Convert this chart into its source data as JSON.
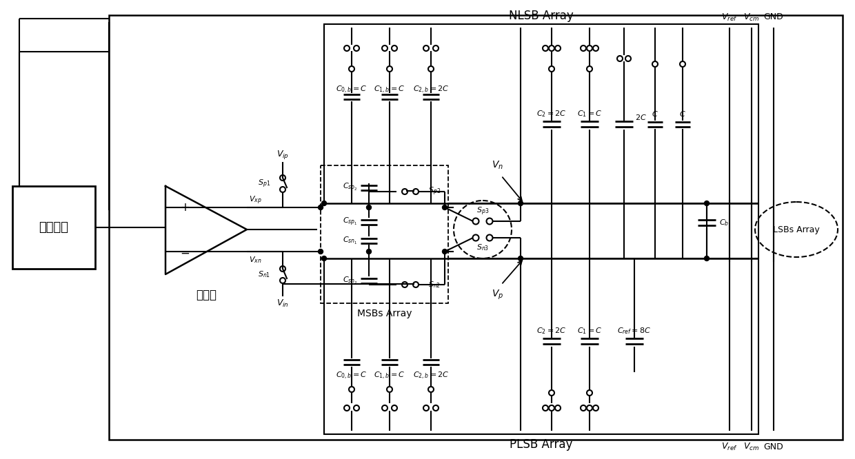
{
  "bg_color": "#ffffff",
  "line_color": "#000000",
  "nlsb_label": "NLSB Array",
  "plsb_label": "PLSB Array",
  "msbs_label": "MSBs Array",
  "lsbs_label": "LSBs Array",
  "ctrl_label": "控制逻辑",
  "comp_label": "比较器"
}
